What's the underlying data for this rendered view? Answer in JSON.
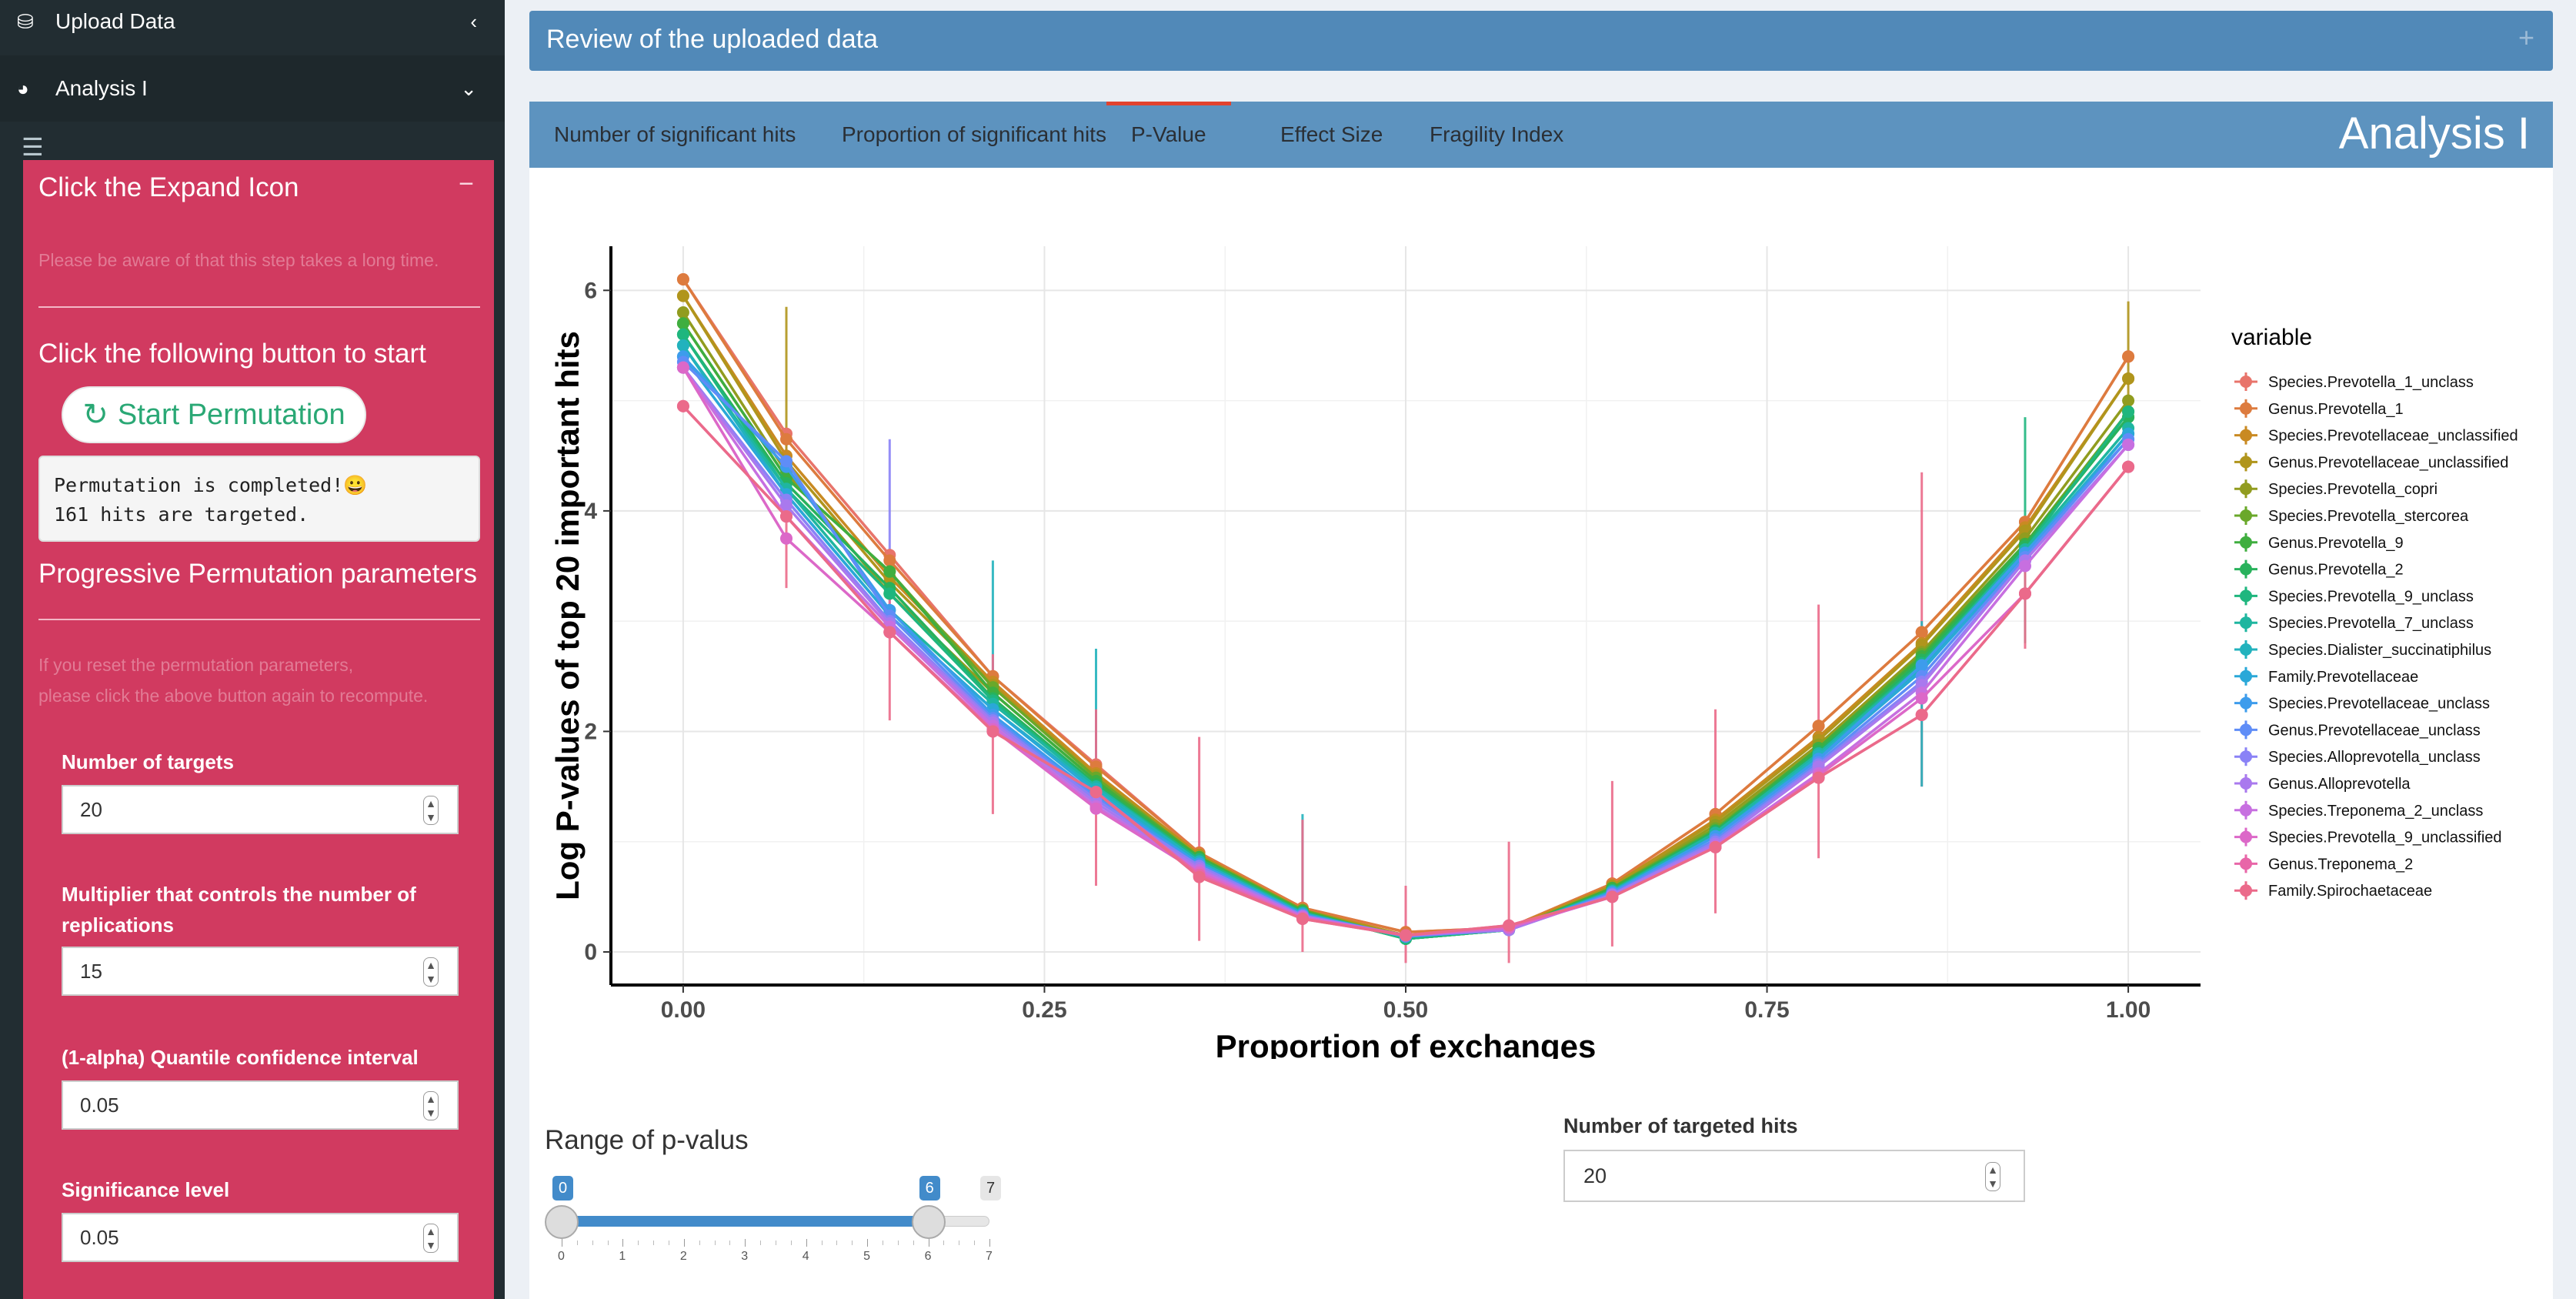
{
  "sidebar": {
    "upload_label": "Upload Data",
    "analysis_label": "Analysis I",
    "panel": {
      "header": "Click the Expand Icon",
      "note1": "Please be aware of that this step takes a long time.",
      "start_heading": "Click the following button to start",
      "start_button": "Start Permutation",
      "result_line1": "Permutation is completed!😀",
      "result_line2": "161 hits are targeted.",
      "params_heading": "Progressive Permutation parameters",
      "note2_line1": "If you reset the permutation parameters,",
      "note2_line2": "please click the above button again to recompute.",
      "fields": [
        {
          "label": "Number of targets",
          "value": "20"
        },
        {
          "label": "Multiplier that controls the number of replications",
          "value": "15"
        },
        {
          "label": "(1-alpha) Quantile confidence interval",
          "value": "0.05"
        },
        {
          "label": "Significance level",
          "value": "0.05"
        }
      ]
    }
  },
  "main": {
    "review_title": "Review of the uploaded data",
    "tabs": [
      {
        "label": "Number of significant hits"
      },
      {
        "label": "Proportion of significant hits"
      },
      {
        "label": "P-Value"
      },
      {
        "label": "Effect Size"
      },
      {
        "label": "Fragility Index"
      }
    ],
    "active_tab": "P-Value",
    "analysis_title": "Analysis I",
    "range_label": "Range of p-valus",
    "slider": {
      "min": 0,
      "max": 7,
      "low": 0,
      "high": 6,
      "ticks": [
        "0",
        "1",
        "2",
        "3",
        "4",
        "5",
        "6",
        "7"
      ]
    },
    "hits_label": "Number of targeted hits",
    "hits_value": "20"
  },
  "chart_data": {
    "type": "line",
    "xlabel": "Proportion of exchanges",
    "ylabel": "Log P-values of top 20 important hits",
    "legend_title": "variable",
    "legend_position": "right",
    "grid": true,
    "xlim": [
      -0.05,
      1.05
    ],
    "ylim": [
      -0.3,
      6.4
    ],
    "xticks": [
      "0.00",
      "0.25",
      "0.50",
      "0.75",
      "1.00"
    ],
    "yticks": [
      "0",
      "2",
      "4",
      "6"
    ],
    "x": [
      0,
      0.0714,
      0.1429,
      0.2143,
      0.2857,
      0.3571,
      0.4286,
      0.5,
      0.5714,
      0.6429,
      0.7143,
      0.7857,
      0.8571,
      0.9286,
      1.0
    ],
    "series": [
      {
        "name": "Species.Prevotella_1_unclass",
        "color": "#e8746b",
        "values": [
          6.1,
          4.7,
          3.6,
          2.5,
          1.7,
          0.9,
          0.4,
          0.18,
          0.22,
          0.62,
          1.25,
          2.05,
          2.9,
          3.9,
          5.4
        ]
      },
      {
        "name": "Genus.Prevotella_1",
        "color": "#dd7b3e",
        "values": [
          6.1,
          4.65,
          3.55,
          2.5,
          1.68,
          0.9,
          0.4,
          0.18,
          0.22,
          0.62,
          1.25,
          2.05,
          2.9,
          3.9,
          5.4
        ]
      },
      {
        "name": "Species.Prevotellaceae_unclassified",
        "color": "#c98a22",
        "values": [
          5.95,
          4.5,
          3.4,
          2.45,
          1.62,
          0.88,
          0.38,
          0.15,
          0.22,
          0.6,
          1.2,
          1.95,
          2.8,
          3.85,
          5.2
        ]
      },
      {
        "name": "Genus.Prevotellaceae_unclassified",
        "color": "#b0951c",
        "values": [
          5.95,
          4.45,
          3.35,
          2.42,
          1.6,
          0.88,
          0.38,
          0.15,
          0.2,
          0.6,
          1.18,
          1.92,
          2.78,
          3.82,
          5.2
        ]
      },
      {
        "name": "Species.Prevotella_copri",
        "color": "#919c1f",
        "values": [
          5.8,
          4.35,
          3.25,
          2.35,
          1.55,
          0.85,
          0.36,
          0.12,
          0.2,
          0.58,
          1.15,
          1.88,
          2.72,
          3.75,
          5.0
        ]
      },
      {
        "name": "Species.Prevotella_stercorea",
        "color": "#6aa82a",
        "values": [
          5.7,
          4.3,
          3.45,
          2.4,
          1.58,
          0.86,
          0.38,
          0.12,
          0.2,
          0.58,
          1.12,
          1.85,
          2.7,
          3.7,
          4.9
        ]
      },
      {
        "name": "Genus.Prevotella_9",
        "color": "#3fae3f",
        "values": [
          5.7,
          4.3,
          3.45,
          2.35,
          1.55,
          0.86,
          0.37,
          0.12,
          0.2,
          0.58,
          1.1,
          1.85,
          2.68,
          3.7,
          4.85
        ]
      },
      {
        "name": "Genus.Prevotella_2",
        "color": "#28b25c",
        "values": [
          5.6,
          4.25,
          3.3,
          2.3,
          1.52,
          0.84,
          0.36,
          0.12,
          0.2,
          0.56,
          1.1,
          1.82,
          2.65,
          3.68,
          4.85
        ]
      },
      {
        "name": "Species.Prevotella_9_unclass",
        "color": "#1fb67e",
        "values": [
          5.6,
          4.2,
          3.25,
          2.28,
          1.5,
          0.84,
          0.36,
          0.12,
          0.2,
          0.56,
          1.08,
          1.8,
          2.62,
          3.65,
          4.9
        ]
      },
      {
        "name": "Species.Prevotella_7_unclass",
        "color": "#1fb6a0",
        "values": [
          5.5,
          4.2,
          3.1,
          2.25,
          1.5,
          0.82,
          0.35,
          0.14,
          0.2,
          0.55,
          1.08,
          1.8,
          2.6,
          3.65,
          4.75
        ]
      },
      {
        "name": "Species.Dialister_succinatiphilus",
        "color": "#22b2bd",
        "values": [
          5.5,
          4.15,
          3.05,
          2.2,
          1.48,
          0.82,
          0.35,
          0.14,
          0.2,
          0.55,
          1.05,
          1.78,
          2.58,
          3.62,
          4.7
        ]
      },
      {
        "name": "Family.Prevotellaceae",
        "color": "#2aa8d8",
        "values": [
          5.4,
          4.15,
          3.05,
          2.2,
          1.45,
          0.8,
          0.34,
          0.14,
          0.2,
          0.54,
          1.05,
          1.75,
          2.55,
          3.6,
          4.7
        ]
      },
      {
        "name": "Species.Prevotellaceae_unclass",
        "color": "#3d9cec",
        "values": [
          5.4,
          4.4,
          3.1,
          2.15,
          1.42,
          0.8,
          0.34,
          0.14,
          0.2,
          0.54,
          1.05,
          1.75,
          2.6,
          3.62,
          4.65
        ]
      },
      {
        "name": "Genus.Prevotellaceae_unclass",
        "color": "#5f8df7",
        "values": [
          5.35,
          4.45,
          3.05,
          2.12,
          1.4,
          0.78,
          0.33,
          0.14,
          0.2,
          0.53,
          1.02,
          1.72,
          2.5,
          3.58,
          4.65
        ]
      },
      {
        "name": "Species.Alloprevotella_unclass",
        "color": "#8a82f6",
        "values": [
          5.3,
          4.1,
          3.0,
          2.1,
          1.38,
          0.78,
          0.33,
          0.15,
          0.2,
          0.52,
          1.0,
          1.7,
          2.45,
          3.55,
          4.6
        ]
      },
      {
        "name": "Genus.Alloprevotella",
        "color": "#a979ee",
        "values": [
          5.3,
          4.05,
          2.98,
          2.08,
          1.35,
          0.76,
          0.32,
          0.15,
          0.2,
          0.52,
          0.98,
          1.68,
          2.42,
          3.55,
          4.6
        ]
      },
      {
        "name": "Species.Treponema_2_unclass",
        "color": "#c76fe0",
        "values": [
          5.3,
          3.95,
          2.95,
          2.05,
          1.32,
          0.74,
          0.32,
          0.15,
          0.22,
          0.5,
          0.96,
          1.62,
          2.35,
          3.5,
          4.6
        ]
      },
      {
        "name": "Species.Prevotella_9_unclassified",
        "color": "#dc68c8",
        "values": [
          5.3,
          3.75,
          2.9,
          2.02,
          1.3,
          0.72,
          0.31,
          0.15,
          0.22,
          0.5,
          0.95,
          1.6,
          2.3,
          3.25,
          4.4
        ]
      },
      {
        "name": "Genus.Treponema_2",
        "color": "#e866a8",
        "values": [
          4.95,
          3.95,
          2.9,
          2.0,
          1.45,
          0.7,
          0.3,
          0.15,
          0.24,
          0.5,
          0.95,
          1.58,
          2.15,
          3.25,
          4.4
        ]
      },
      {
        "name": "Family.Spirochaetaceae",
        "color": "#eb6a8a",
        "values": [
          4.95,
          3.95,
          2.9,
          2.0,
          1.45,
          0.68,
          0.3,
          0.15,
          0.24,
          0.5,
          0.95,
          1.58,
          2.15,
          3.25,
          4.4
        ]
      }
    ],
    "error_bars": [
      {
        "series": "Family.Spirochaetaceae",
        "x": 0.0714,
        "low": 3.3,
        "high": 4.7
      },
      {
        "series": "Genus.Prevotellaceae_unclassified",
        "x": 0.0714,
        "low": 4.0,
        "high": 5.85
      },
      {
        "series": "Species.Alloprevotella_unclass",
        "x": 0.1429,
        "low": 3.1,
        "high": 4.65
      },
      {
        "series": "Family.Spirochaetaceae",
        "x": 0.1429,
        "low": 2.1,
        "high": 3.6
      },
      {
        "series": "Species.Dialister_succinatiphilus",
        "x": 0.2143,
        "low": 2.2,
        "high": 3.55
      },
      {
        "series": "Family.Spirochaetaceae",
        "x": 0.2143,
        "low": 1.25,
        "high": 2.7
      },
      {
        "series": "Species.Dialister_succinatiphilus",
        "x": 0.2857,
        "low": 1.5,
        "high": 2.75
      },
      {
        "series": "Family.Spirochaetaceae",
        "x": 0.2857,
        "low": 0.6,
        "high": 2.2
      },
      {
        "series": "Family.Spirochaetaceae",
        "x": 0.3571,
        "low": 0.1,
        "high": 1.95
      },
      {
        "series": "Species.Dialister_succinatiphilus",
        "x": 0.4286,
        "low": 0.4,
        "high": 1.25
      },
      {
        "series": "Family.Spirochaetaceae",
        "x": 0.4286,
        "low": 0.0,
        "high": 1.2
      },
      {
        "series": "Family.Spirochaetaceae",
        "x": 0.5,
        "low": -0.1,
        "high": 0.6
      },
      {
        "series": "Family.Spirochaetaceae",
        "x": 0.5714,
        "low": -0.1,
        "high": 1.0
      },
      {
        "series": "Family.Spirochaetaceae",
        "x": 0.6429,
        "low": 0.05,
        "high": 1.55
      },
      {
        "series": "Family.Spirochaetaceae",
        "x": 0.7143,
        "low": 0.35,
        "high": 2.2
      },
      {
        "series": "Family.Spirochaetaceae",
        "x": 0.7857,
        "low": 0.85,
        "high": 3.15
      },
      {
        "series": "Family.Spirochaetaceae",
        "x": 0.8571,
        "low": 1.5,
        "high": 4.35
      },
      {
        "series": "Species.Dialister_succinatiphilus",
        "x": 0.8571,
        "low": 1.5,
        "high": 3.0
      },
      {
        "series": "Species.Prevotella_9_unclass",
        "x": 0.9286,
        "low": 2.8,
        "high": 4.85
      },
      {
        "series": "Family.Spirochaetaceae",
        "x": 0.9286,
        "low": 2.75,
        "high": 3.6
      },
      {
        "series": "Genus.Prevotellaceae_unclassified",
        "x": 1.0,
        "low": 4.6,
        "high": 5.9
      }
    ]
  }
}
